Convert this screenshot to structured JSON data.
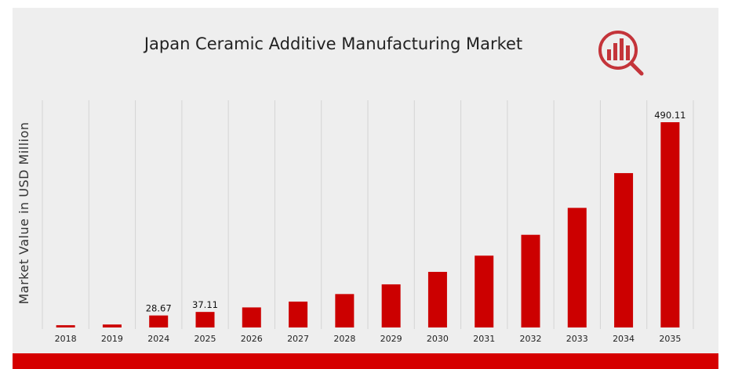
{
  "colors": {
    "panel_background": "#eeeeee",
    "bar": "#cc0000",
    "footer_band": "#d50000",
    "gridline": "#d4d4d4",
    "logo": "#c4343a"
  },
  "logo": {
    "icon": "magnifier-bar-chart-logo-icon"
  },
  "chart_data": {
    "type": "bar",
    "title": "Japan Ceramic Additive Manufacturing Market",
    "xlabel": "",
    "ylabel": "Market Value in USD Million",
    "categories": [
      "2018",
      "2019",
      "2024",
      "2025",
      "2026",
      "2027",
      "2028",
      "2029",
      "2030",
      "2031",
      "2032",
      "2033",
      "2034",
      "2035"
    ],
    "values": [
      5.4,
      7.1,
      28.67,
      37.11,
      47.9,
      61.8,
      79.8,
      103.0,
      132.8,
      171.5,
      221.3,
      285.6,
      368.6,
      490.11
    ],
    "data_labels": [
      {
        "category": "2024",
        "text": "28.67"
      },
      {
        "category": "2025",
        "text": "37.11"
      },
      {
        "category": "2035",
        "text": "490.11"
      }
    ],
    "ylim": [
      0,
      490.11
    ],
    "grid": "vertical",
    "legend": "none"
  }
}
